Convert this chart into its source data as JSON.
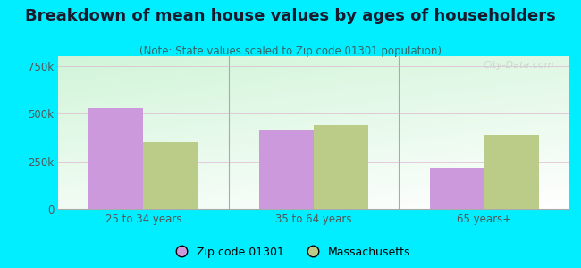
{
  "title": "Breakdown of mean house values by ages of householders",
  "subtitle": "(Note: State values scaled to Zip code 01301 population)",
  "categories": [
    "25 to 34 years",
    "35 to 64 years",
    "65 years+"
  ],
  "zip_values": [
    530000,
    410000,
    215000
  ],
  "state_values": [
    350000,
    440000,
    390000
  ],
  "zip_color": "#cc99dd",
  "state_color": "#bbcc88",
  "background_color": "#00eeff",
  "ylim": [
    0,
    800000
  ],
  "yticks": [
    0,
    250000,
    500000,
    750000
  ],
  "ytick_labels": [
    "0",
    "250k",
    "500k",
    "750k"
  ],
  "legend_zip": "Zip code 01301",
  "legend_state": "Massachusetts",
  "title_fontsize": 13,
  "subtitle_fontsize": 8.5,
  "bar_width": 0.32,
  "watermark": "City-Data.com"
}
